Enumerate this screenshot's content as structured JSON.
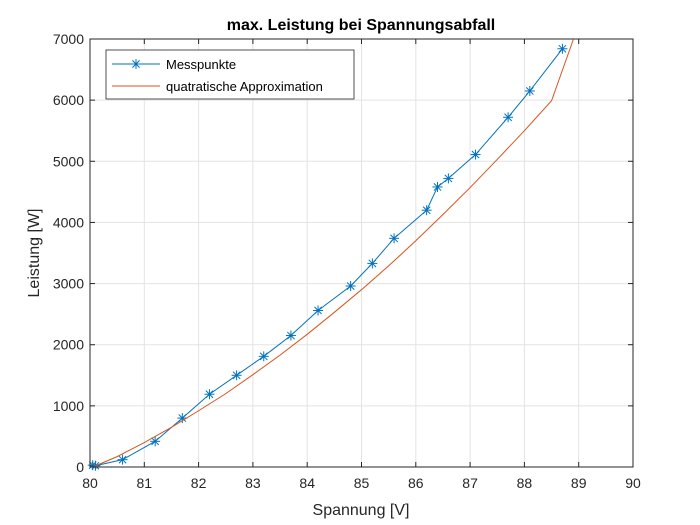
{
  "chart_data": {
    "type": "line",
    "title": "max. Leistung bei Spannungsabfall",
    "xlabel": "Spannung [V]",
    "ylabel": "Leistung [W]",
    "xlim": [
      80,
      90
    ],
    "ylim": [
      0,
      7000
    ],
    "xticks": [
      80,
      81,
      82,
      83,
      84,
      85,
      86,
      87,
      88,
      89,
      90
    ],
    "yticks": [
      0,
      1000,
      2000,
      3000,
      4000,
      5000,
      6000,
      7000
    ],
    "grid": true,
    "legend_position": "top-left",
    "series": [
      {
        "name": "Messpunkte",
        "color": "#0072BD",
        "marker": "asterisk",
        "x": [
          80.05,
          80.1,
          80.6,
          81.2,
          81.7,
          82.2,
          82.7,
          83.2,
          83.7,
          84.2,
          84.8,
          85.2,
          85.6,
          86.2,
          86.4,
          86.6,
          87.1,
          87.7,
          88.1,
          88.7
        ],
        "y": [
          30,
          20,
          120,
          420,
          800,
          1190,
          1500,
          1810,
          2150,
          2560,
          2960,
          3330,
          3740,
          4200,
          4580,
          4720,
          5110,
          5720,
          6150,
          6840
        ]
      },
      {
        "name": "quatratische Approximation",
        "color": "#D95319",
        "marker": "none",
        "x": [
          80.05,
          80.5,
          81.0,
          81.5,
          82.0,
          82.5,
          83.0,
          83.5,
          84.0,
          84.5,
          85.0,
          85.5,
          86.0,
          86.5,
          87.0,
          87.5,
          88.0,
          88.5,
          88.9
        ],
        "y": [
          0,
          170,
          400,
          650,
          920,
          1200,
          1510,
          1830,
          2170,
          2530,
          2900,
          3290,
          3700,
          4130,
          4570,
          5030,
          5500,
          5990,
          6990
        ]
      }
    ]
  }
}
